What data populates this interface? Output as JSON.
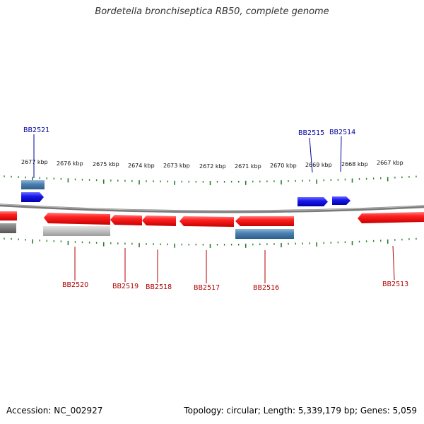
{
  "title": "Bordetella bronchiseptica RB50, complete genome",
  "footer": {
    "accession": "Accession: NC_002927",
    "summary": "Topology: circular; Length: 5,339,179 bp; Genes: 5,059"
  },
  "colors": {
    "forward_gene": "#1010ee",
    "reverse_gene": "#ee1111",
    "forward_other": "#4a7fae",
    "reverse_other": "#aaaaaa",
    "backbone": "#7a7a7a",
    "tick": "#2a7a2a",
    "forward_label": "#00009c",
    "reverse_label": "#b00000"
  },
  "scale": {
    "labels": [
      "2677 kbp",
      "2676 kbp",
      "2675 kbp",
      "2674 kbp",
      "2673 kbp",
      "2672 kbp",
      "2671 kbp",
      "2670 kbp",
      "2669 kbp",
      "2668 kbp",
      "2667 kbp"
    ]
  },
  "genes_forward": [
    "BB2521",
    "BB2515",
    "BB2514"
  ],
  "genes_reverse": [
    "BB2520",
    "BB2519",
    "BB2518",
    "BB2517",
    "BB2516",
    "BB2513"
  ]
}
